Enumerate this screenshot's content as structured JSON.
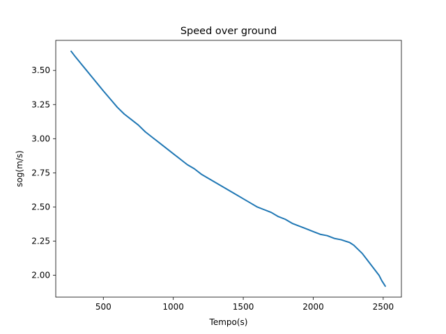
{
  "chart_data": {
    "type": "line",
    "title": "Speed over ground",
    "xlabel": "Tempo(s)",
    "ylabel": "sog(m/s)",
    "xlim": [
      160,
      2630
    ],
    "ylim": [
      1.84,
      3.72
    ],
    "xticks": [
      500,
      1000,
      1500,
      2000,
      2500
    ],
    "yticks": [
      2.0,
      2.25,
      2.5,
      2.75,
      3.0,
      3.25,
      3.5
    ],
    "grid": false,
    "legend": "none",
    "series": [
      {
        "color": "#1f77b4",
        "x": [
          270,
          300,
          340,
          380,
          420,
          460,
          500,
          550,
          600,
          650,
          700,
          750,
          800,
          850,
          900,
          950,
          1000,
          1050,
          1100,
          1150,
          1200,
          1250,
          1300,
          1350,
          1400,
          1450,
          1500,
          1550,
          1600,
          1650,
          1700,
          1750,
          1800,
          1850,
          1900,
          1950,
          2000,
          2050,
          2100,
          2150,
          2200,
          2230,
          2260,
          2290,
          2320,
          2350,
          2380,
          2410,
          2440,
          2470,
          2490,
          2515
        ],
        "y": [
          3.64,
          3.6,
          3.55,
          3.5,
          3.45,
          3.4,
          3.35,
          3.29,
          3.23,
          3.18,
          3.14,
          3.1,
          3.05,
          3.01,
          2.97,
          2.93,
          2.89,
          2.85,
          2.81,
          2.78,
          2.74,
          2.71,
          2.68,
          2.65,
          2.62,
          2.59,
          2.56,
          2.53,
          2.5,
          2.48,
          2.46,
          2.43,
          2.41,
          2.38,
          2.36,
          2.34,
          2.32,
          2.3,
          2.29,
          2.27,
          2.26,
          2.25,
          2.24,
          2.22,
          2.19,
          2.16,
          2.12,
          2.08,
          2.04,
          2.0,
          1.96,
          1.92
        ]
      }
    ]
  }
}
